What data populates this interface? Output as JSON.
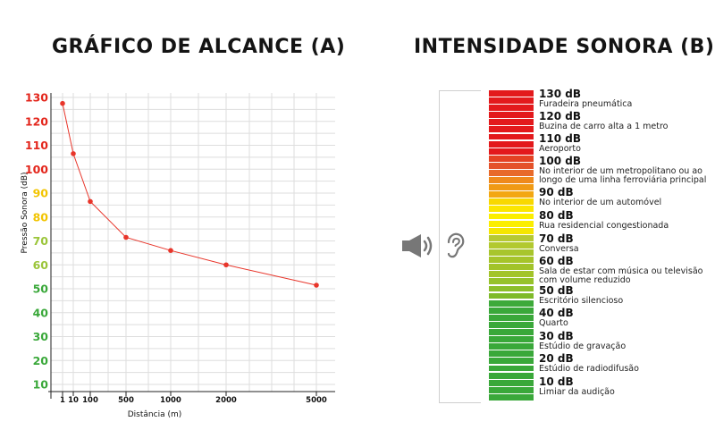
{
  "titles": {
    "a": "GRÁFICO DE ALCANCE (A)",
    "b": "INTENSIDADE SONORA (B)"
  },
  "chart_data": {
    "type": "line",
    "title": "GRÁFICO DE ALCANCE (A)",
    "xlabel": "Distância (m)",
    "ylabel": "Pressão Sonora (dB)",
    "x_ticks": [
      "1",
      "10",
      "100",
      "500",
      "1000",
      "2000",
      "5000"
    ],
    "y_ticks": [
      10,
      20,
      30,
      40,
      50,
      60,
      70,
      80,
      90,
      100,
      110,
      120,
      130
    ],
    "ylim": [
      5,
      133
    ],
    "grid": true,
    "series": [
      {
        "name": "Pressão Sonora",
        "color": "#e8352a",
        "x": [
          1,
          10,
          100,
          500,
          1000,
          2000,
          5000
        ],
        "y": [
          127.5,
          106.5,
          86.5,
          71.5,
          66,
          60,
          51.5
        ]
      }
    ],
    "y_tick_colors": {
      "10": "#3aa83a",
      "20": "#3aa83a",
      "30": "#3aa83a",
      "40": "#3aa83a",
      "50": "#3aa83a",
      "60": "#9bc53a",
      "70": "#9bc53a",
      "80": "#f2c400",
      "90": "#f2c400",
      "100": "#e3261c",
      "110": "#e3261c",
      "120": "#e3261c",
      "130": "#e3261c"
    }
  },
  "scale": {
    "levels": [
      {
        "db": "130 dB",
        "desc": [
          "Furadeira pneumática"
        ]
      },
      {
        "db": "120 dB",
        "desc": [
          "Buzina de carro alta a 1 metro"
        ]
      },
      {
        "db": "110 dB",
        "desc": [
          "Aeroporto"
        ]
      },
      {
        "db": "100 dB",
        "desc": [
          "No interior de um metropolitano ou ao",
          "longo de uma linha ferroviária principal"
        ]
      },
      {
        "db": "90 dB",
        "desc": [
          "No interior de um automóvel"
        ]
      },
      {
        "db": "80 dB",
        "desc": [
          "Rua residencial congestionada"
        ]
      },
      {
        "db": "70 dB",
        "desc": [
          "Conversa"
        ]
      },
      {
        "db": "60 dB",
        "desc": [
          "Sala de estar com música ou televisão",
          "com volume reduzido"
        ]
      },
      {
        "db": "50 dB",
        "desc": [
          "Escritório silencioso"
        ]
      },
      {
        "db": "40 dB",
        "desc": [
          "Quarto"
        ]
      },
      {
        "db": "30 dB",
        "desc": [
          "Estúdio de gravação"
        ]
      },
      {
        "db": "20 dB",
        "desc": [
          "Estúdio de radiodifusão"
        ]
      },
      {
        "db": "10 dB",
        "desc": [
          "Limiar da audição"
        ]
      }
    ],
    "segment_colors": [
      "#e3191c",
      "#e3191c",
      "#e3191c",
      "#e3191c",
      "#e3191c",
      "#e3191c",
      "#e3191c",
      "#e3191c",
      "#e3191c",
      "#e44223",
      "#e4522a",
      "#e86a2a",
      "#ef8a1c",
      "#f09a15",
      "#f3a712",
      "#f8d800",
      "#fbe600",
      "#fbee00",
      "#fbee00",
      "#f5e600",
      "#b6c933",
      "#b2c92f",
      "#a8c52c",
      "#a6c42a",
      "#a2c32a",
      "#a3c42a",
      "#96c22a",
      "#8cbf2a",
      "#7fba2a",
      "#3daa3a",
      "#3aa83a",
      "#3aa83a",
      "#3aa83a",
      "#3aa83a",
      "#3aa83a",
      "#3aa83a",
      "#3aa83a",
      "#3aa83a",
      "#3aa83a",
      "#3aa83a",
      "#3aa83a",
      "#3aa83a",
      "#3aa83a"
    ],
    "icons": [
      "speaker-icon",
      "ear-icon"
    ]
  }
}
